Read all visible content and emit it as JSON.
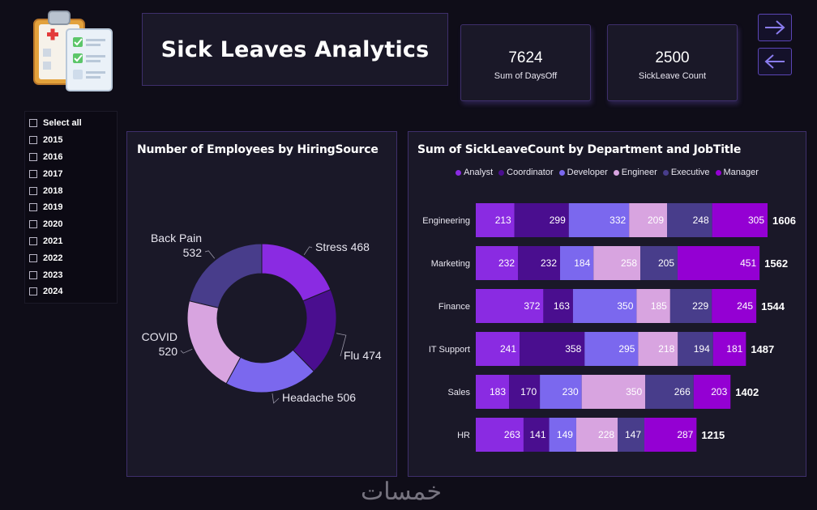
{
  "header": {
    "title": "Sick Leaves Analytics"
  },
  "kpis": [
    {
      "value": "7624",
      "label": "Sum of DaysOff"
    },
    {
      "value": "2500",
      "label": "SickLeave Count"
    }
  ],
  "nav": {
    "forward_icon": "arrow-right-icon",
    "back_icon": "arrow-left-icon"
  },
  "slicer": {
    "items": [
      "Select all",
      "2015",
      "2016",
      "2017",
      "2018",
      "2019",
      "2020",
      "2021",
      "2022",
      "2023",
      "2024"
    ]
  },
  "watermark": "خمسات",
  "colors": {
    "Analyst": "#8a2be2",
    "Coordinator": "#4a0e8f",
    "Developer": "#7b68ee",
    "Engineer": "#d8a4e0",
    "Executive": "#483d8b",
    "Manager": "#9400d3",
    "panel": "#1a1828",
    "border": "#3e2f6b"
  },
  "chart_data": [
    {
      "type": "pie",
      "title": "Number of Employees by HiringSource",
      "categories": [
        "Stress",
        "Flu",
        "Headache",
        "COVID",
        "Back Pain"
      ],
      "values": [
        468,
        474,
        506,
        520,
        532
      ],
      "colors": [
        "#8a2be2",
        "#4a0e8f",
        "#7b68ee",
        "#d8a4e0",
        "#483d8b"
      ],
      "donut": true
    },
    {
      "type": "bar",
      "orientation": "horizontal",
      "stacked": true,
      "title": "Sum of SickLeaveCount by Department and JobTitle",
      "categories": [
        "Engineering",
        "Marketing",
        "Finance",
        "IT Support",
        "Sales",
        "HR"
      ],
      "series": [
        {
          "name": "Analyst",
          "values": [
            213,
            232,
            372,
            241,
            183,
            263
          ]
        },
        {
          "name": "Coordinator",
          "values": [
            299,
            232,
            163,
            358,
            170,
            141
          ]
        },
        {
          "name": "Developer",
          "values": [
            332,
            184,
            350,
            295,
            230,
            149
          ]
        },
        {
          "name": "Engineer",
          "values": [
            209,
            258,
            185,
            218,
            350,
            228
          ]
        },
        {
          "name": "Executive",
          "values": [
            248,
            205,
            229,
            194,
            266,
            147
          ]
        },
        {
          "name": "Manager",
          "values": [
            305,
            451,
            245,
            181,
            203,
            287
          ]
        }
      ],
      "totals": [
        1606,
        1562,
        1544,
        1487,
        1402,
        1215
      ],
      "legend_position": "top"
    }
  ]
}
